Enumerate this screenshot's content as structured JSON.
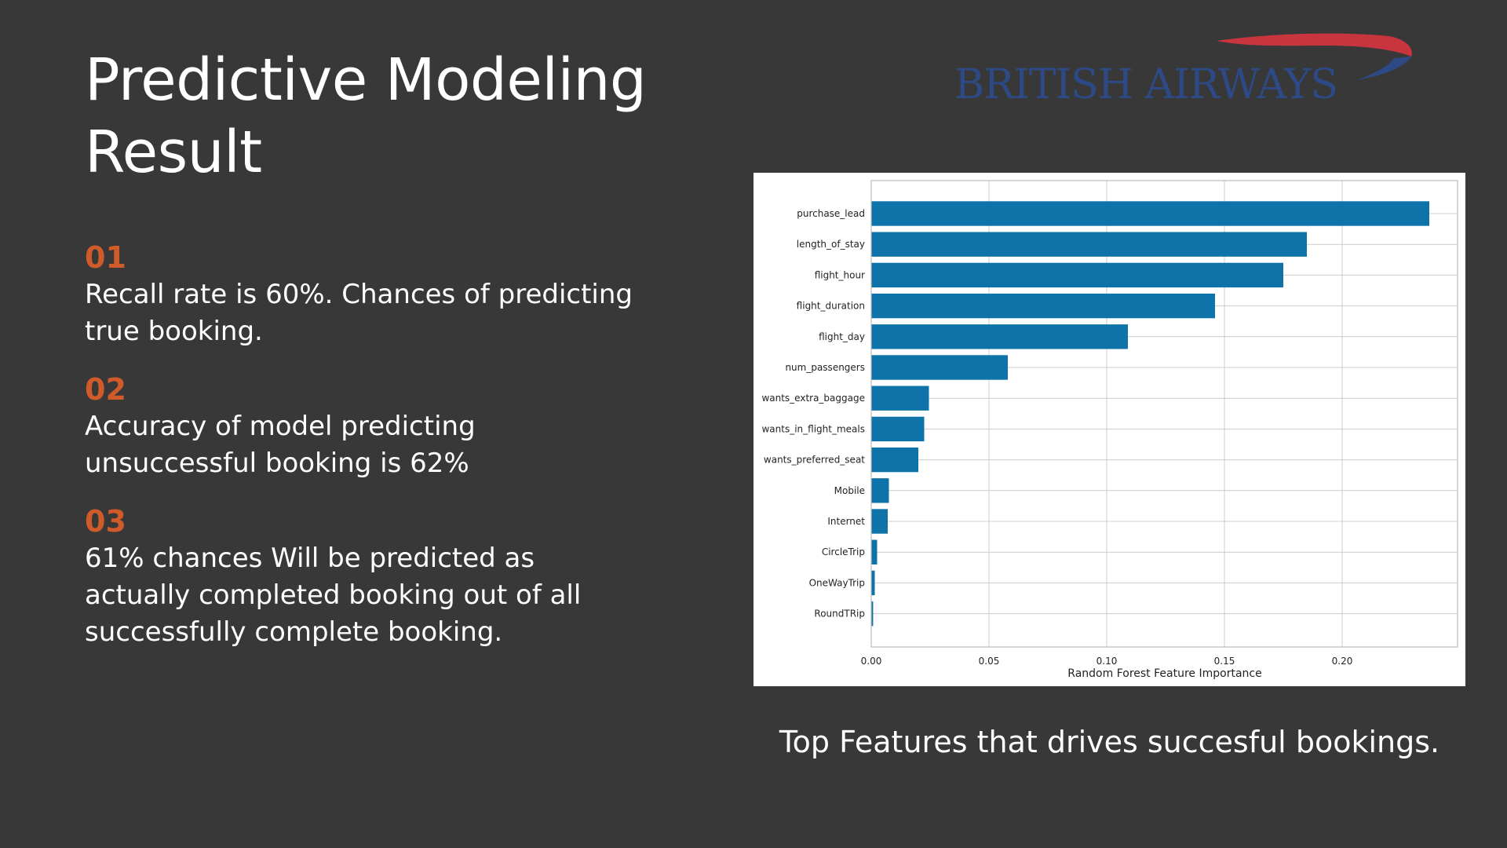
{
  "slide": {
    "title_line1": "Predictive Modeling",
    "title_line2": "Result",
    "points": [
      {
        "num": "01",
        "text": "Recall rate is 60%. Chances of predicting true booking."
      },
      {
        "num": "02",
        "text": "Accuracy of model predicting unsuccessful booking is 62%"
      },
      {
        "num": "03",
        "text": "61% chances Will be predicted as actually completed booking out of all successfully complete booking."
      }
    ],
    "caption": "Top Features that drives succesful bookings."
  },
  "logo": {
    "text": "BRITISH AIRWAYS",
    "colors": {
      "red": "#c8353f",
      "blue": "#2d4a86"
    }
  },
  "colors": {
    "background": "#383838",
    "accent": "#cf5a2a",
    "bar": "#0d73a8",
    "panel": "#ffffff",
    "grid": "#cccccc"
  },
  "chart_data": {
    "type": "bar",
    "orientation": "horizontal",
    "categories": [
      "purchase_lead",
      "length_of_stay",
      "flight_hour",
      "flight_duration",
      "flight_day",
      "num_passengers",
      "wants_extra_baggage",
      "wants_in_flight_meals",
      "wants_preferred_seat",
      "Mobile",
      "Internet",
      "CircleTrip",
      "OneWayTrip",
      "RoundTRip"
    ],
    "values": [
      0.237,
      0.185,
      0.175,
      0.146,
      0.109,
      0.058,
      0.0245,
      0.0225,
      0.02,
      0.0075,
      0.007,
      0.0025,
      0.0015,
      0.0008
    ],
    "xticks": [
      "0.00",
      "0.05",
      "0.10",
      "0.15",
      "0.20"
    ],
    "xlabel": "Random Forest Feature Importance",
    "ylabel": "",
    "title": "",
    "xlim": [
      0,
      0.249
    ],
    "grid": true
  }
}
